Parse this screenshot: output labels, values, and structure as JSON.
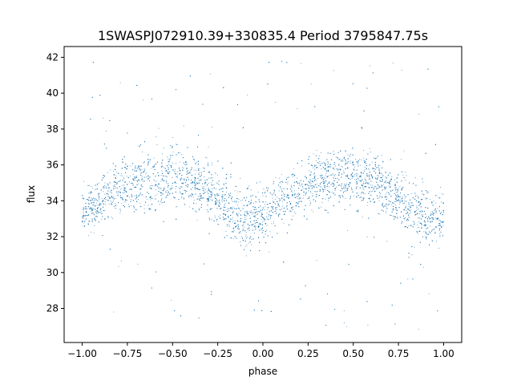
{
  "chart_data": {
    "type": "scatter",
    "title": "1SWASPJ072910.39+330835.4 Period 3795847.75s",
    "xlabel": "phase",
    "ylabel": "flux",
    "xlim": [
      -1.1,
      1.1
    ],
    "ylim": [
      26.1,
      42.6
    ],
    "xticks": [
      -1.0,
      -0.75,
      -0.5,
      -0.25,
      0.0,
      0.25,
      0.5,
      0.75,
      1.0
    ],
    "xtick_labels": [
      "−1.00",
      "−0.75",
      "−0.50",
      "−0.25",
      "0.00",
      "0.25",
      "0.50",
      "0.75",
      "1.00"
    ],
    "yticks": [
      28,
      30,
      32,
      34,
      36,
      38,
      40,
      42
    ],
    "ytick_labels": [
      "28",
      "30",
      "32",
      "34",
      "36",
      "38",
      "40",
      "42"
    ],
    "grid": false,
    "marker_color": "#1f77b4",
    "trend": {
      "phase": [
        -1.0,
        -0.9,
        -0.8,
        -0.7,
        -0.6,
        -0.5,
        -0.4,
        -0.3,
        -0.2,
        -0.1,
        0.0,
        0.1,
        0.2,
        0.3,
        0.4,
        0.5,
        0.6,
        0.7,
        0.8,
        0.9,
        1.0
      ],
      "flux": [
        33.4,
        34.0,
        34.6,
        35.0,
        35.2,
        35.4,
        35.2,
        34.6,
        33.6,
        32.8,
        33.2,
        34.0,
        34.6,
        35.2,
        35.4,
        35.4,
        35.2,
        34.6,
        33.8,
        33.0,
        33.4
      ],
      "spread": [
        0.9,
        0.9,
        1.0,
        1.1,
        1.2,
        1.2,
        1.1,
        1.0,
        1.2,
        1.3,
        1.1,
        1.0,
        1.0,
        1.1,
        1.2,
        1.2,
        1.1,
        1.0,
        1.2,
        1.3,
        0.9
      ]
    },
    "flux_range_observed": [
      26.8,
      41.9
    ]
  }
}
